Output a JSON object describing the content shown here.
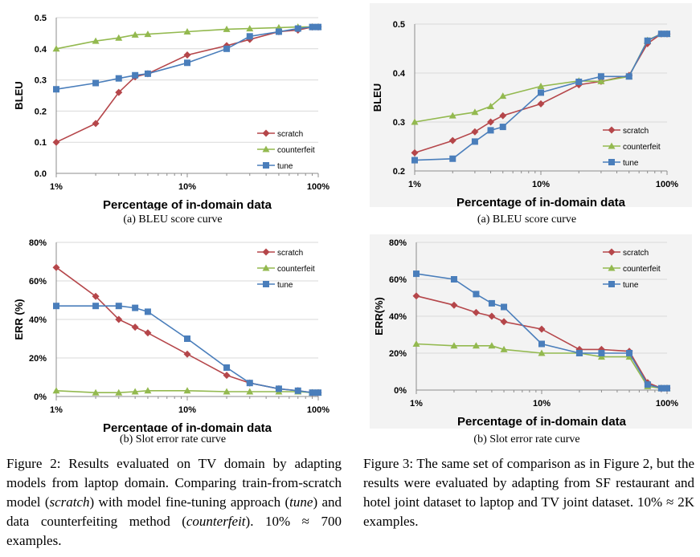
{
  "colors": {
    "scratch": "#b5464a",
    "counterfeit": "#93b94f",
    "tune": "#4a7ebb",
    "grid": "#d9d9d9",
    "axis": "#8c8c8c"
  },
  "chart_data": [
    {
      "id": "fig2a",
      "type": "line",
      "xscale": "log",
      "xlim": [
        1,
        100
      ],
      "xticks": [
        "1%",
        "10%",
        "100%"
      ],
      "xticks_values": [
        1,
        10,
        100
      ],
      "ylim": [
        0,
        0.5
      ],
      "yticks": [
        "0.0",
        "0.1",
        "0.2",
        "0.3",
        "0.4",
        "0.5"
      ],
      "yticks_values": [
        0,
        0.1,
        0.2,
        0.3,
        0.4,
        0.5
      ],
      "xlabel": "Percentage of in-domain data",
      "ylabel": "BLEU",
      "grid": "horizontal",
      "legend_position": "bottom-right",
      "caption": "(a) BLEU score curve",
      "x": [
        1,
        2,
        3,
        4,
        5,
        10,
        20,
        30,
        50,
        70,
        90,
        100
      ],
      "series": [
        {
          "name": "scratch",
          "values": [
            0.1,
            0.16,
            0.26,
            0.31,
            0.32,
            0.38,
            0.41,
            0.43,
            0.455,
            0.46,
            0.47,
            0.47
          ]
        },
        {
          "name": "counterfeit",
          "values": [
            0.4,
            0.425,
            0.435,
            0.445,
            0.447,
            0.455,
            0.463,
            0.465,
            0.468,
            0.47,
            0.47,
            0.47
          ]
        },
        {
          "name": "tune",
          "values": [
            0.27,
            0.29,
            0.305,
            0.315,
            0.32,
            0.355,
            0.4,
            0.44,
            0.455,
            0.465,
            0.47,
            0.47
          ]
        }
      ]
    },
    {
      "id": "fig3a",
      "type": "line",
      "xscale": "log",
      "xlim": [
        1,
        100
      ],
      "xticks": [
        "1%",
        "10%",
        "100%"
      ],
      "xticks_values": [
        1,
        10,
        100
      ],
      "ylim": [
        0.2,
        0.5
      ],
      "yticks": [
        "0.2",
        "0.3",
        "0.4",
        "0.5"
      ],
      "yticks_values": [
        0.2,
        0.3,
        0.4,
        0.5
      ],
      "xlabel": "Percentage of in-domain data",
      "ylabel": "BLEU",
      "grid": "horizontal",
      "legend_position": "bottom-right",
      "caption": "(a) BLEU score curve",
      "x": [
        1,
        2,
        3,
        4,
        5,
        10,
        20,
        30,
        50,
        70,
        90,
        100
      ],
      "series": [
        {
          "name": "scratch",
          "values": [
            0.237,
            0.262,
            0.28,
            0.3,
            0.313,
            0.337,
            0.376,
            0.383,
            0.395,
            0.46,
            0.48,
            0.48
          ]
        },
        {
          "name": "counterfeit",
          "values": [
            0.3,
            0.313,
            0.32,
            0.332,
            0.353,
            0.373,
            0.384,
            0.383,
            0.393,
            0.467,
            0.48,
            0.48
          ]
        },
        {
          "name": "tune",
          "values": [
            0.222,
            0.225,
            0.26,
            0.283,
            0.29,
            0.36,
            0.382,
            0.393,
            0.393,
            0.466,
            0.48,
            0.48
          ]
        }
      ]
    },
    {
      "id": "fig2b",
      "type": "line",
      "xscale": "log",
      "xlim": [
        1,
        100
      ],
      "xticks": [
        "1%",
        "10%",
        "100%"
      ],
      "xticks_values": [
        1,
        10,
        100
      ],
      "ylim": [
        0,
        80
      ],
      "yticks": [
        "0%",
        "20%",
        "40%",
        "60%",
        "80%"
      ],
      "yticks_values": [
        0,
        20,
        40,
        60,
        80
      ],
      "xlabel": "Percentage of in-domain data",
      "ylabel": "ERR (%)",
      "grid": "horizontal",
      "legend_position": "top-right",
      "caption": "(b) Slot error rate curve",
      "x": [
        1,
        2,
        3,
        4,
        5,
        10,
        20,
        30,
        50,
        70,
        90,
        100
      ],
      "series": [
        {
          "name": "scratch",
          "values": [
            67,
            52,
            40,
            36,
            33,
            22,
            11,
            7,
            4,
            3,
            2,
            2
          ]
        },
        {
          "name": "counterfeit",
          "values": [
            3,
            2,
            2,
            2.5,
            3,
            3,
            2.5,
            2.5,
            2.5,
            2.5,
            2,
            2
          ]
        },
        {
          "name": "tune",
          "values": [
            47,
            47,
            47,
            46,
            44,
            30,
            15,
            7,
            4,
            3,
            2,
            2
          ]
        }
      ]
    },
    {
      "id": "fig3b",
      "type": "line",
      "xscale": "log",
      "xlim": [
        1,
        100
      ],
      "xticks": [
        "1%",
        "10%",
        "100%"
      ],
      "xticks_values": [
        1,
        10,
        100
      ],
      "ylim": [
        0,
        80
      ],
      "yticks": [
        "0%",
        "20%",
        "40%",
        "60%",
        "80%"
      ],
      "yticks_values": [
        0,
        20,
        40,
        60,
        80
      ],
      "xlabel": "Percentage of in-domain data",
      "ylabel": "ERR(%)",
      "grid": "horizontal",
      "legend_position": "top-right",
      "caption": "(b) Slot error rate curve",
      "x": [
        1,
        2,
        3,
        4,
        5,
        10,
        20,
        30,
        50,
        70,
        90,
        100
      ],
      "series": [
        {
          "name": "scratch",
          "values": [
            51,
            46,
            42,
            40,
            37,
            33,
            22,
            22,
            21,
            4,
            1,
            1
          ]
        },
        {
          "name": "counterfeit",
          "values": [
            25,
            24,
            24,
            24,
            22,
            20,
            20,
            18,
            18,
            2,
            1,
            1
          ]
        },
        {
          "name": "tune",
          "values": [
            63,
            60,
            52,
            47,
            45,
            25,
            20,
            20,
            20,
            3,
            1,
            1
          ]
        }
      ]
    }
  ],
  "figure2_caption": {
    "label": "Figure 2:",
    "t1": "Results evaluated on TV domain by adapting models from laptop domain. Comparing train-from-scratch model (",
    "scratch": "scratch",
    "t2": ") with model fine-tuning approach (",
    "tune": "tune",
    "t3": ") and data counterfeiting method (",
    "counterfeit": "counterfeit",
    "t4": "). 10% ≈ 700 examples."
  },
  "figure3_caption": {
    "label": "Figure 3:",
    "text": "The same set of comparison as in Figure 2, but the results were evaluated by adapting from SF restaurant and hotel joint dataset to laptop and TV joint dataset. 10% ≈ 2K examples."
  }
}
